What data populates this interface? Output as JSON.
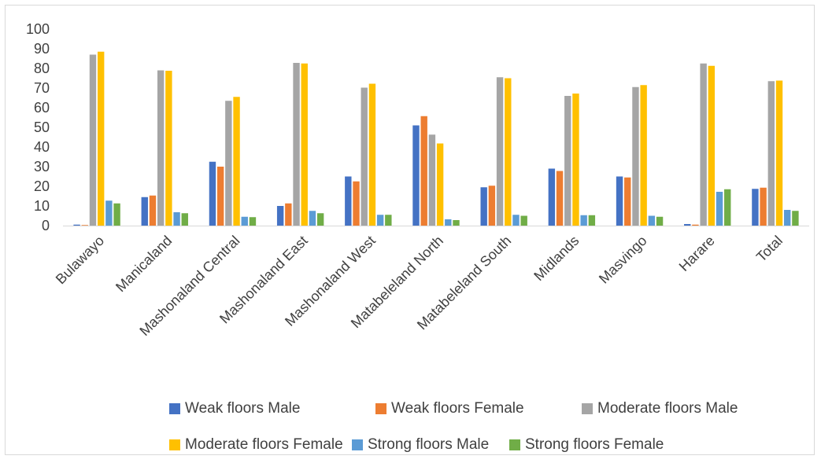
{
  "chart_data": {
    "type": "bar",
    "title": "",
    "xlabel": "",
    "ylabel": "",
    "ylim": [
      0,
      100
    ],
    "yticks": [
      "0",
      "10",
      "20",
      "30",
      "40",
      "50",
      "60",
      "70",
      "80",
      "90",
      "100"
    ],
    "grid": false,
    "legend_position": "bottom",
    "categories": [
      "Bulawayo",
      "Manicaland",
      "Mashonaland Central",
      "Mashonaland East",
      "Mashonaland West",
      "Matabeleland North",
      "Matabeleland South",
      "Midlands",
      "Masvingo",
      "Harare",
      "Total"
    ],
    "series": [
      {
        "name": "Weak floors Male",
        "color": "#4472c4",
        "values": [
          0.5,
          14.5,
          32.5,
          10,
          25,
          51,
          19.5,
          29,
          25,
          0.8,
          18.7
        ]
      },
      {
        "name": "Weak floors Female",
        "color": "#ed7d31",
        "values": [
          0.3,
          15.3,
          30,
          11.3,
          22.5,
          55.7,
          20.3,
          27.8,
          24.5,
          0.5,
          19.3
        ]
      },
      {
        "name": "Moderate floors Male",
        "color": "#a5a5a5",
        "values": [
          87,
          79,
          63.5,
          82.8,
          70.2,
          46.3,
          75.5,
          66,
          70.5,
          82.5,
          73.5
        ]
      },
      {
        "name": "Moderate floors Female",
        "color": "#ffc000",
        "values": [
          88.5,
          78.8,
          65.5,
          82.5,
          72.2,
          41.8,
          75,
          67.2,
          71.5,
          81.3,
          73.8
        ]
      },
      {
        "name": "Strong floors Male",
        "color": "#5b9bd5",
        "values": [
          12.7,
          6.8,
          4.5,
          7.5,
          5.5,
          3.2,
          5.5,
          5.3,
          5,
          17.2,
          8
        ]
      },
      {
        "name": "Strong floors Female",
        "color": "#70ad47",
        "values": [
          11.3,
          6.3,
          4.3,
          6.3,
          5.5,
          2.8,
          5,
          5.3,
          4.5,
          18.5,
          7.5
        ]
      }
    ]
  },
  "legend": {
    "rows": [
      [
        "Weak floors Male",
        "Weak floors Female",
        "Moderate floors Male"
      ],
      [
        "Moderate floors Female",
        "Strong floors Male",
        "Strong floors Female"
      ]
    ]
  }
}
